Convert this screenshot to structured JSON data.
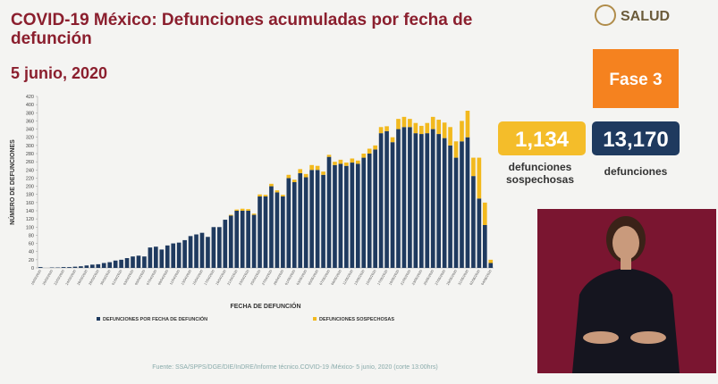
{
  "header": {
    "title": "COVID-19 México: Defunciones acumuladas por fecha de defunción",
    "date": "5 junio, 2020",
    "logo": "SALUD"
  },
  "summary": {
    "phase": "Fase 3",
    "suspected": {
      "value": "1,134",
      "label_line1": "defunciones",
      "label_line2": "sospechosas"
    },
    "confirmed": {
      "value": "13,170",
      "label": "defunciones"
    }
  },
  "source": "Fuente: SSA/SPPS/DGE/DIE/InDRE/Informe técnico.COVID-19 /México- 5 junio, 2020 (corte 13:00hrs)",
  "chart_data": {
    "type": "stacked-bar",
    "x_label": "FECHA DE DEFUNCIÓN",
    "y_label": "NÚMERO DE DEFUNCIONES",
    "categories": [
      "18/03/2020",
      null,
      "20/03/2020",
      null,
      "22/03/2020",
      null,
      "24/03/2020",
      null,
      "26/03/2020",
      null,
      "28/03/2020",
      null,
      "30/03/2020",
      null,
      "01/04/2020",
      null,
      "03/04/2020",
      null,
      "05/04/2020",
      null,
      "07/04/2020",
      null,
      "09/04/2020",
      null,
      "11/04/2020",
      null,
      "13/04/2020",
      null,
      "15/04/2020",
      null,
      "17/04/2020",
      null,
      "19/04/2020",
      null,
      "21/04/2020",
      null,
      "23/04/2020",
      null,
      "25/04/2020",
      null,
      "27/04/2020",
      null,
      "29/04/2020",
      null,
      "01/05/2020",
      null,
      "03/05/2020",
      null,
      "05/05/2020",
      null,
      "07/05/2020",
      null,
      "09/05/2020",
      null,
      "11/05/2020",
      null,
      "13/05/2020",
      null,
      "15/05/2020",
      null,
      "17/05/2020",
      null,
      "19/05/2020",
      null,
      "21/05/2020",
      null,
      "23/05/2020",
      null,
      "25/05/2020",
      null,
      "27/05/2020",
      null,
      "29/05/2020",
      null,
      "31/05/2020",
      null,
      "02/06/2020",
      null,
      "04/06/2020"
    ],
    "series": [
      {
        "name": "DEFUNCIONES POR FECHA DE DEFUNCIÓN",
        "color": "#1f3a5f",
        "values": [
          2,
          0,
          1,
          1,
          2,
          2,
          3,
          4,
          6,
          8,
          9,
          12,
          14,
          18,
          20,
          24,
          28,
          30,
          28,
          50,
          52,
          45,
          55,
          60,
          62,
          68,
          78,
          82,
          86,
          76,
          100,
          100,
          118,
          128,
          140,
          140,
          140,
          130,
          175,
          175,
          200,
          185,
          175,
          220,
          210,
          232,
          222,
          240,
          240,
          228,
          272,
          252,
          255,
          250,
          258,
          255,
          270,
          280,
          290,
          330,
          335,
          308,
          340,
          345,
          345,
          330,
          328,
          330,
          340,
          328,
          318,
          300,
          270,
          310,
          320,
          225,
          170,
          105,
          12
        ]
      },
      {
        "name": "DEFUNCIONES SOSPECHOSAS",
        "color": "#f2b91e",
        "values": [
          0,
          0,
          0,
          0,
          0,
          0,
          0,
          0,
          0,
          0,
          0,
          0,
          0,
          0,
          0,
          0,
          0,
          0,
          0,
          0,
          0,
          0,
          0,
          0,
          0,
          0,
          0,
          0,
          0,
          0,
          0,
          0,
          0,
          2,
          3,
          5,
          4,
          3,
          5,
          4,
          6,
          5,
          4,
          8,
          6,
          10,
          8,
          12,
          10,
          8,
          5,
          8,
          10,
          8,
          10,
          8,
          10,
          12,
          10,
          15,
          12,
          12,
          25,
          25,
          20,
          25,
          20,
          25,
          30,
          35,
          38,
          45,
          40,
          50,
          65,
          45,
          100,
          55,
          8
        ]
      }
    ],
    "ylim": [
      0,
      420
    ],
    "yticks": [
      0,
      20,
      40,
      60,
      80,
      100,
      120,
      140,
      160,
      180,
      200,
      220,
      240,
      260,
      280,
      300,
      320,
      340,
      360,
      380,
      400,
      420
    ]
  }
}
